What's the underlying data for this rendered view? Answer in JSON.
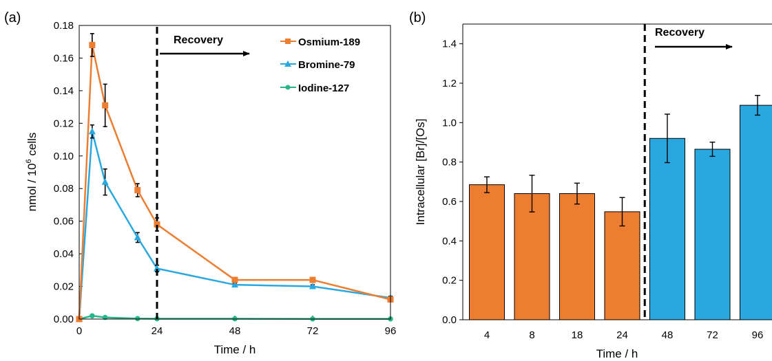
{
  "chart_data": [
    {
      "panel_label": "(a)",
      "type": "line",
      "xlabel": "Time / h",
      "ylabel_main": "nmol / 10",
      "ylabel_sup": "6",
      "ylabel_tail": " cells",
      "xlim": [
        0,
        96
      ],
      "ylim": [
        0,
        0.18
      ],
      "xticks": [
        0,
        24,
        48,
        72,
        96
      ],
      "yticks": [
        0.0,
        0.02,
        0.04,
        0.06,
        0.08,
        0.1,
        0.12,
        0.14,
        0.16,
        0.18
      ],
      "ytick_labels": [
        "0.00",
        "0.02",
        "0.04",
        "0.06",
        "0.08",
        "0.10",
        "0.12",
        "0.14",
        "0.16",
        "0.18"
      ],
      "xtick_labels": [
        "0",
        "24",
        "48",
        "72",
        "96"
      ],
      "vline_x": 24,
      "annotation": "Recovery",
      "grid": false,
      "legend_position": "top-right",
      "series": [
        {
          "name": "Osmium-189",
          "color": "#ED7D31",
          "marker": "square",
          "x": [
            0,
            4,
            8,
            18,
            24,
            48,
            72,
            96
          ],
          "y": [
            0.0,
            0.168,
            0.131,
            0.079,
            0.058,
            0.024,
            0.024,
            0.012
          ],
          "err": [
            0,
            0.007,
            0.013,
            0.004,
            0.004,
            0.001,
            0.001,
            0.001
          ]
        },
        {
          "name": "Bromine-79",
          "color": "#29A8E0",
          "marker": "triangle",
          "x": [
            0,
            4,
            8,
            18,
            24,
            48,
            72,
            96
          ],
          "y": [
            0.0,
            0.115,
            0.084,
            0.05,
            0.031,
            0.021,
            0.02,
            0.013
          ],
          "err": [
            0,
            0.004,
            0.008,
            0.003,
            0.002,
            0.001,
            0.001,
            0.001
          ]
        },
        {
          "name": "Iodine-127",
          "color": "#26B68A",
          "marker": "circle",
          "x": [
            0,
            4,
            8,
            18,
            24,
            48,
            72,
            96
          ],
          "y": [
            0.0,
            0.002,
            0.001,
            0.0003,
            0.0002,
            0.0002,
            0.0001,
            0.0001
          ],
          "err": [
            0,
            0,
            0,
            0,
            0,
            0,
            0,
            0
          ]
        }
      ]
    },
    {
      "panel_label": "(b)",
      "type": "bar",
      "xlabel": "Time / h",
      "ylabel": "Intracellular [Br]/[Os]",
      "categories": [
        "4",
        "8",
        "18",
        "24",
        "48",
        "72",
        "96"
      ],
      "values": [
        0.685,
        0.64,
        0.64,
        0.548,
        0.92,
        0.865,
        1.088
      ],
      "err": [
        0.04,
        0.093,
        0.053,
        0.072,
        0.123,
        0.036,
        0.05
      ],
      "colors": [
        "#ED7D31",
        "#ED7D31",
        "#ED7D31",
        "#ED7D31",
        "#29A8E0",
        "#29A8E0",
        "#29A8E0"
      ],
      "ylim": [
        0,
        1.5
      ],
      "yticks": [
        0.0,
        0.2,
        0.4,
        0.6,
        0.8,
        1.0,
        1.2,
        1.4
      ],
      "ytick_labels": [
        "0.0",
        "0.2",
        "0.4",
        "0.6",
        "0.8",
        "1.0",
        "1.2",
        "1.4"
      ],
      "vline_between": [
        3,
        4
      ],
      "annotation": "Recovery",
      "grid": false
    }
  ]
}
